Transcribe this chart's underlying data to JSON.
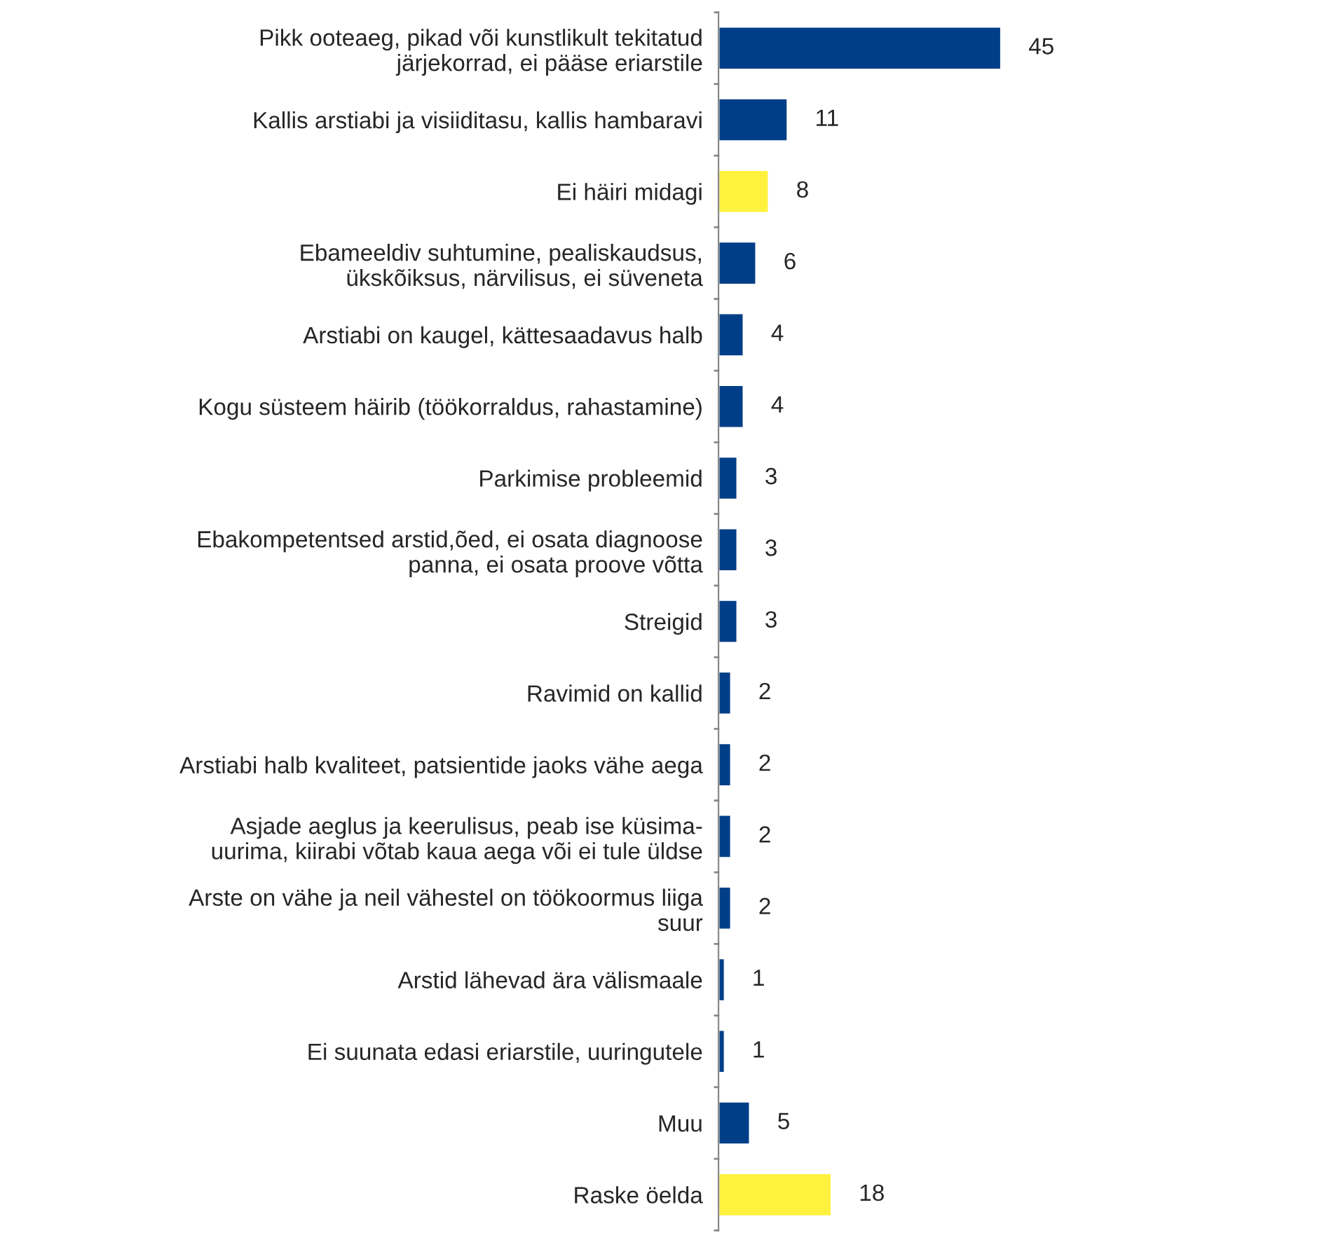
{
  "chart_data": {
    "type": "bar",
    "orientation": "horizontal",
    "categories": [
      "Pikk ooteaeg, pikad või kunstlikult tekitatud\njärjekorrad, ei pääse eriarstile",
      "Kallis arstiabi ja visiiditasu, kallis hambaravi",
      "Ei häiri midagi",
      "Ebameeldiv suhtumine, pealiskaudsus,\nükskõiksus, närvilisus, ei süveneta",
      "Arstiabi on kaugel, kättesaadavus halb",
      "Kogu süsteem häirib (töökorraldus, rahastamine)",
      "Parkimise probleemid",
      "Ebakompetentsed arstid,õed, ei osata diagnoose\npanna, ei osata proove võtta",
      "Streigid",
      "Ravimid on kallid",
      "Arstiabi halb kvaliteet, patsientide jaoks vähe aega",
      "Asjade aeglus ja keerulisus, peab ise küsima-\nuurima, kiirabi võtab kaua aega või ei tule üldse",
      "Arste on vähe ja neil vähestel on töökoormus liiga\nsuur",
      "Arstid lähevad ära välismaale",
      "Ei suunata edasi eriarstile, uuringutele",
      "Muu",
      "Raske öelda"
    ],
    "values": [
      45,
      11,
      8,
      6,
      4,
      4,
      3,
      3,
      3,
      2,
      2,
      2,
      2,
      1,
      1,
      5,
      18
    ],
    "colors": [
      "#003f87",
      "#003f87",
      "#fff23f",
      "#003f87",
      "#003f87",
      "#003f87",
      "#003f87",
      "#003f87",
      "#003f87",
      "#003f87",
      "#003f87",
      "#003f87",
      "#003f87",
      "#003f87",
      "#003f87",
      "#003f87",
      "#fff23f"
    ],
    "tick_labels": "y",
    "data_labels": true,
    "grid": false,
    "legend": false
  }
}
